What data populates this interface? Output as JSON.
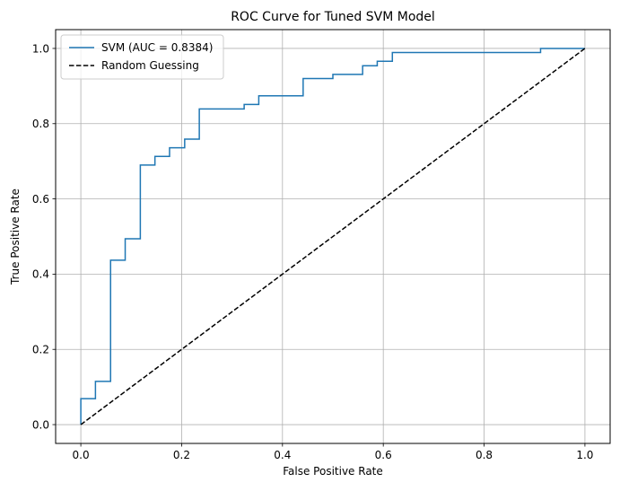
{
  "chart_data": {
    "type": "line",
    "title": "ROC Curve for Tuned SVM Model",
    "xlabel": "False Positive Rate",
    "ylabel": "True Positive Rate",
    "xlim": [
      -0.05,
      1.05
    ],
    "ylim": [
      -0.05,
      1.05
    ],
    "xticks": [
      0.0,
      0.2,
      0.4,
      0.6,
      0.8,
      1.0
    ],
    "yticks": [
      0.0,
      0.2,
      0.4,
      0.6,
      0.8,
      1.0
    ],
    "xtick_labels": [
      "0.0",
      "0.2",
      "0.4",
      "0.6",
      "0.8",
      "1.0"
    ],
    "ytick_labels": [
      "0.0",
      "0.2",
      "0.4",
      "0.6",
      "0.8",
      "1.0"
    ],
    "grid": true,
    "legend_position": "upper-left",
    "series": [
      {
        "name": "SVM (AUC = 0.8384)",
        "color": "#1f77b4",
        "style": "solid",
        "step": true,
        "x": [
          0.0,
          0.0,
          0.029,
          0.029,
          0.059,
          0.059,
          0.088,
          0.088,
          0.118,
          0.118,
          0.147,
          0.147,
          0.176,
          0.176,
          0.206,
          0.206,
          0.235,
          0.235,
          0.324,
          0.324,
          0.353,
          0.353,
          0.441,
          0.441,
          0.5,
          0.5,
          0.559,
          0.559,
          0.588,
          0.588,
          0.618,
          0.618,
          0.912,
          0.912,
          1.0
        ],
        "y": [
          0.0,
          0.069,
          0.069,
          0.115,
          0.115,
          0.437,
          0.437,
          0.494,
          0.494,
          0.69,
          0.69,
          0.713,
          0.713,
          0.736,
          0.736,
          0.759,
          0.759,
          0.839,
          0.839,
          0.851,
          0.851,
          0.874,
          0.874,
          0.92,
          0.92,
          0.931,
          0.931,
          0.954,
          0.954,
          0.966,
          0.966,
          0.989,
          0.989,
          1.0,
          1.0
        ]
      },
      {
        "name": "Random Guessing",
        "color": "#000000",
        "style": "dashed",
        "x": [
          0.0,
          1.0
        ],
        "y": [
          0.0,
          1.0
        ]
      }
    ]
  }
}
